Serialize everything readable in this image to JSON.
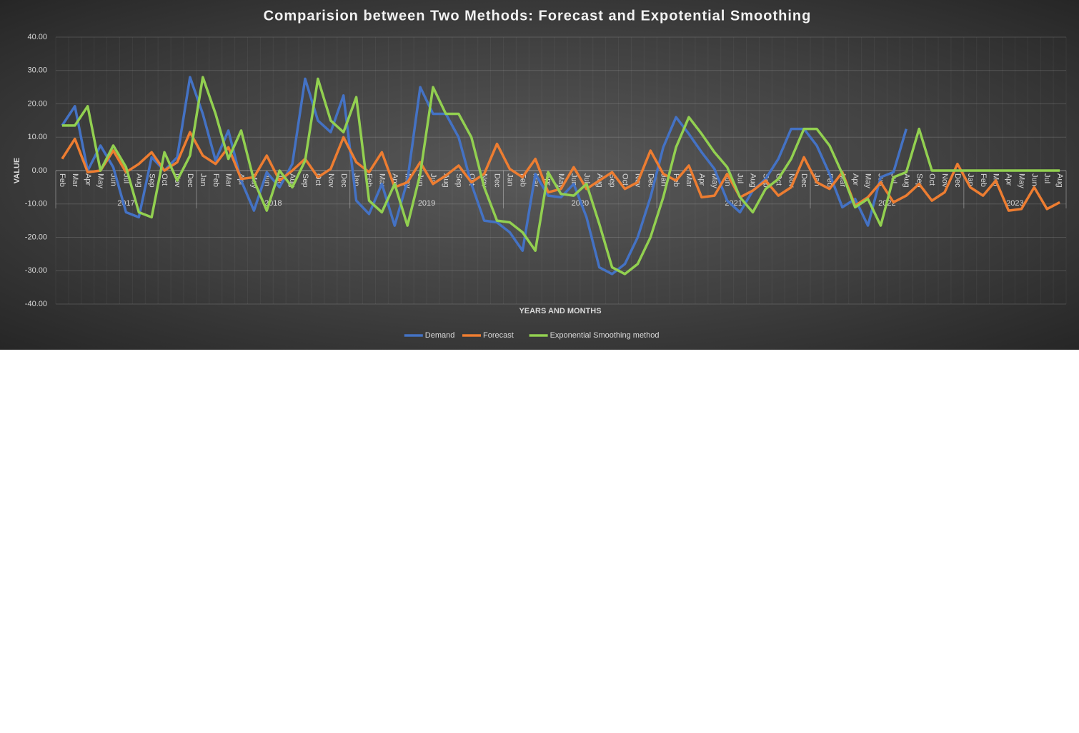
{
  "chart_data": {
    "type": "line",
    "title": "Comparision between Two Methods: Forecast and Expotential Smoothing",
    "x_label": "YEARS AND MONTHS",
    "y_label": "VALUE",
    "categories": [
      "Feb",
      "Mar",
      "Apr",
      "May",
      "Jun",
      "Jul",
      "Aug",
      "Sep",
      "Oct",
      "Nov",
      "Dec",
      "Jan",
      "Feb",
      "Mar",
      "Apr",
      "May",
      "Jun",
      "Jul",
      "Aug",
      "Sep",
      "Oct",
      "Nov",
      "Dec",
      "Jan",
      "Feb",
      "Mar",
      "Apr",
      "May",
      "Jun",
      "Jul",
      "Aug",
      "Sep",
      "Oct",
      "Nov",
      "Dec",
      "Jan",
      "Feb",
      "Mar",
      "Apr",
      "May",
      "Jun",
      "Jul",
      "Aug",
      "Sep",
      "Oct",
      "Nov",
      "Dec",
      "Jan",
      "Feb",
      "Mar",
      "Apr",
      "May",
      "Jun",
      "Jul",
      "Aug",
      "Sep",
      "Oct",
      "Nov",
      "Dec",
      "Jan",
      "Feb",
      "Mar",
      "Apr",
      "May",
      "Jun",
      "Jul",
      "Aug",
      "Sep",
      "Oct",
      "Nov",
      "Dec",
      "Jan",
      "Feb",
      "Mar",
      "Apr",
      "May",
      "Jun",
      "Jul",
      "Aug"
    ],
    "years": [
      {
        "label": "2017",
        "months": 11
      },
      {
        "label": "2018",
        "months": 12
      },
      {
        "label": "2019",
        "months": 12
      },
      {
        "label": "2020",
        "months": 12
      },
      {
        "label": "2021",
        "months": 12
      },
      {
        "label": "2022",
        "months": 12
      },
      {
        "label": "2023",
        "months": 8
      }
    ],
    "ylim": [
      -40,
      40
    ],
    "yticks": [
      {
        "value": -40,
        "label": "-40.00"
      },
      {
        "value": -30,
        "label": "-30.00"
      },
      {
        "value": -20,
        "label": "-20.00"
      },
      {
        "value": -10,
        "label": "-10.00"
      },
      {
        "value": 0,
        "label": "0.00"
      },
      {
        "value": 10,
        "label": "10.00"
      },
      {
        "value": 20,
        "label": "20.00"
      },
      {
        "value": 30,
        "label": "30.00"
      },
      {
        "value": 40,
        "label": "40.00"
      }
    ],
    "grid": true,
    "legend": "bottom",
    "series": [
      {
        "name": "Demand",
        "color": "#4472c4",
        "values": [
          13.5,
          19.3,
          0,
          7.5,
          1,
          -12.5,
          -14,
          4,
          0,
          4,
          28,
          17,
          3,
          12,
          -3,
          -12,
          -0.5,
          -5,
          2,
          27.5,
          15,
          11.5,
          22.5,
          -9,
          -13,
          -4,
          -16.5,
          -3,
          25,
          17,
          17,
          10,
          -4,
          -15,
          -15.5,
          -18.5,
          -24,
          -1,
          -7.5,
          -8,
          -4,
          -14,
          -29,
          -31,
          -28,
          -20,
          -8,
          7,
          16,
          11,
          5.5,
          0.5,
          -9,
          -12.5,
          -6,
          -2.5,
          3.5,
          12.5,
          12.5,
          7.5,
          -1,
          -11,
          -8.5,
          -16.5,
          -2,
          -0.5,
          12.5,
          null,
          null,
          null,
          null,
          null,
          null,
          null,
          null,
          null,
          null,
          null,
          null
        ]
      },
      {
        "name": "Forecast",
        "color": "#ed7d31",
        "values": [
          3.5,
          9.5,
          -0.5,
          0,
          6,
          -0.5,
          2,
          5.5,
          0,
          2.5,
          11.5,
          4.5,
          2,
          7,
          -2.5,
          -2,
          4.5,
          -3,
          0,
          3.5,
          -2,
          0.5,
          10,
          2.5,
          -0.5,
          5.5,
          -5,
          -3.5,
          2.5,
          -4,
          -1.5,
          1.5,
          -3.5,
          -1,
          8,
          0.5,
          -2,
          3.5,
          -6.5,
          -5.5,
          1,
          -5.5,
          -3,
          -0.5,
          -5.5,
          -3.5,
          6,
          -1,
          -3,
          1.5,
          -8,
          -7.5,
          -1,
          -8,
          -6,
          -3,
          -7.5,
          -5,
          4,
          -3.5,
          -5.5,
          -0.5,
          -10.5,
          -8,
          -3.5,
          -9.5,
          -7.5,
          -4,
          -9,
          -6.5,
          2,
          -5,
          -7.5,
          -3,
          -12,
          -11.5,
          -5,
          -11.5,
          -9.5
        ]
      },
      {
        "name": "Exponential Smoothing method",
        "color": "#92d050",
        "values": [
          13.5,
          13.5,
          19.3,
          0,
          7.5,
          1,
          -12.5,
          -14,
          5.5,
          -3,
          4.5,
          28,
          17,
          3.5,
          12,
          -3,
          -12,
          0,
          -5,
          3,
          27.5,
          15,
          11.5,
          22,
          -9,
          -12.5,
          -4,
          -16.5,
          -1,
          25,
          17,
          17,
          10,
          -5,
          -15,
          -15.5,
          -18.5,
          -24,
          -0.5,
          -7,
          -7.5,
          -4,
          -16,
          -29,
          -31,
          -28,
          -20,
          -8,
          7,
          16,
          11,
          5.5,
          1,
          -8,
          -12.5,
          -5.5,
          -2.5,
          3.5,
          12.5,
          12.5,
          7.5,
          -1,
          -11,
          -8.5,
          -16.5,
          -2,
          -0.5,
          12.5,
          0,
          0,
          0,
          0,
          0,
          0,
          0,
          0,
          0,
          0,
          0
        ]
      }
    ]
  }
}
